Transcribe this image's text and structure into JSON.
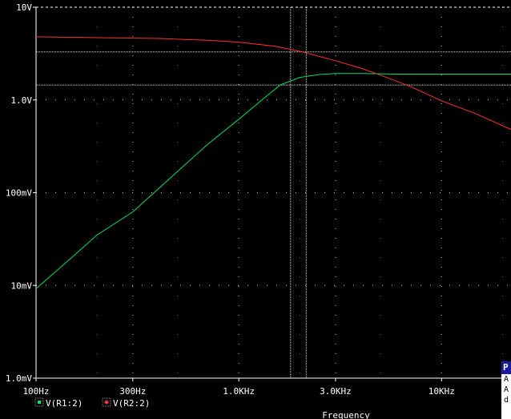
{
  "chart_data": {
    "type": "line",
    "title": "",
    "xlabel": "Frequency",
    "ylabel": "",
    "xscale": "log",
    "yscale": "log",
    "xlim": [
      100,
      22000
    ],
    "ylim": [
      0.001,
      10
    ],
    "x_ticks": [
      {
        "value": 100,
        "label": "100Hz"
      },
      {
        "value": 300,
        "label": "300Hz"
      },
      {
        "value": 1000,
        "label": "1.0KHz"
      },
      {
        "value": 3000,
        "label": "3.0KHz"
      },
      {
        "value": 10000,
        "label": "10KHz"
      }
    ],
    "y_ticks": [
      {
        "value": 10,
        "label": "10V"
      },
      {
        "value": 1,
        "label": "1.0V"
      },
      {
        "value": 0.1,
        "label": "100mV"
      },
      {
        "value": 0.01,
        "label": "10mV"
      },
      {
        "value": 0.001,
        "label": "1.0mV"
      }
    ],
    "grid": true,
    "series": [
      {
        "name": "V(R1:2)",
        "color": "#00e060",
        "marker": "square",
        "x": [
          100,
          150,
          200,
          300,
          500,
          700,
          1000,
          1300,
          1600,
          2000,
          2500,
          3000,
          4000,
          6000,
          10000,
          22000
        ],
        "y": [
          0.0092,
          0.02,
          0.035,
          0.062,
          0.17,
          0.33,
          0.62,
          1.0,
          1.45,
          1.75,
          1.88,
          1.93,
          1.93,
          1.9,
          1.9,
          1.9
        ]
      },
      {
        "name": "V(R2:2)",
        "color": "#ff3030",
        "marker": "diamond",
        "x": [
          100,
          200,
          400,
          700,
          1000,
          1500,
          2000,
          3000,
          4000,
          5000,
          7000,
          10000,
          15000,
          22000
        ],
        "y": [
          4.8,
          4.7,
          4.6,
          4.4,
          4.2,
          3.8,
          3.35,
          2.65,
          2.2,
          1.85,
          1.4,
          0.98,
          0.7,
          0.48
        ]
      }
    ],
    "cursors": {
      "x": [
        1800,
        2150
      ],
      "y": [
        3.3,
        1.45
      ]
    }
  },
  "probe_panel": {
    "title": "P",
    "rows": [
      "A",
      "A",
      "d"
    ]
  },
  "colors": {
    "background": "#000000",
    "axes": "#ffffff",
    "grid": "#c8c8c8",
    "cursor": "#dddddd"
  }
}
